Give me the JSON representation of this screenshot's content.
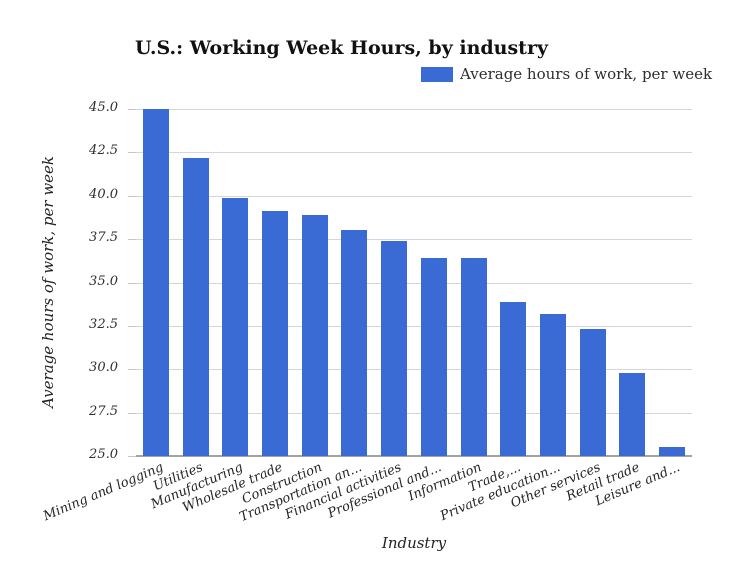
{
  "title": "U.S.: Working Week Hours, by industry",
  "legend": {
    "label": "Average hours of work, per week"
  },
  "axes": {
    "x_title": "Industry",
    "y_title": "Average hours of work, per week"
  },
  "colors": {
    "bar": "#3a6ad4",
    "gridline": "#d6d6d6",
    "axis_line": "#a3a3a3",
    "tick": "#c4c4c4",
    "title_text": "#111111",
    "label_text": "#2e2e2e"
  },
  "chart_data": {
    "type": "bar",
    "title": "U.S.: Working Week Hours, by industry",
    "xlabel": "Industry",
    "ylabel": "Average hours of work, per week",
    "legend": [
      "Average hours of work, per week"
    ],
    "legend_position": "top-right",
    "grid": true,
    "ylim": [
      25.0,
      45.0
    ],
    "ytick_step": 2.5,
    "ytick_labels": [
      "45.0",
      "42.5",
      "40.0",
      "37.5",
      "35.0",
      "32.5",
      "30.0",
      "27.5",
      "25.0"
    ],
    "categories": [
      "Mining and logging",
      "Utilities",
      "Manufacturing",
      "Wholesale trade",
      "Construction",
      "Transportation an...",
      "Financial activities",
      "Professional and...",
      "Information",
      "Trade,...",
      "Private education...",
      "Other services",
      "Retail trade",
      "Leisure and..."
    ],
    "values": [
      45.0,
      42.2,
      39.9,
      39.1,
      38.9,
      38.0,
      37.4,
      36.4,
      36.4,
      33.9,
      33.2,
      32.3,
      29.8,
      25.5
    ]
  }
}
